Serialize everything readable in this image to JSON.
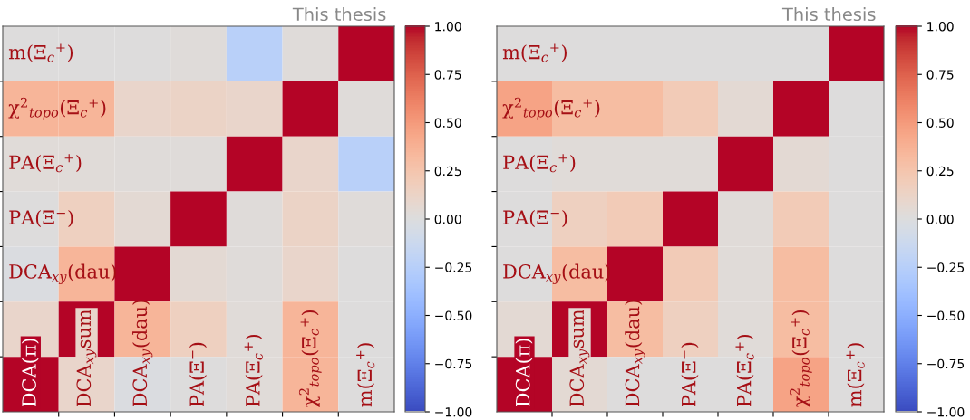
{
  "chart_data": [
    {
      "type": "heatmap",
      "annotations": [
        "This thesis"
      ],
      "tick_labels": false,
      "categories": [
        "DCA(π)",
        "DCA$_{xy}$sum",
        "DCA$_{xy}$(dau)",
        "PA(Ξ$^{−}$)",
        "PA(Ξ$_{c}$$^{+}$)",
        "χ$^{2}$$_{topo}$(Ξ$_{c}$$^{+}$)",
        "m(Ξ$_{c}$$^{+}$)"
      ],
      "y_categories": [
        "m(Ξ$_{c}$$^{+}$)",
        "χ$^{2}$$_{topo}$(Ξ$_{c}$$^{+}$)",
        "PA(Ξ$_{c}$$^{+}$)",
        "PA(Ξ$^{−}$)",
        "DCA$_{xy}$(dau)",
        null,
        null
      ],
      "cells": [
        [
          0.0,
          0.0,
          0.0,
          0.02,
          -0.25,
          0.02,
          1
        ],
        [
          0.35,
          0.35,
          0.1,
          0.12,
          0.1,
          1,
          0.02
        ],
        [
          0.03,
          0.03,
          0.02,
          0.02,
          1,
          0.1,
          -0.25
        ],
        [
          0.0,
          0.15,
          0.05,
          1,
          0.02,
          0.12,
          0.02
        ],
        [
          -0.02,
          0.35,
          1,
          0.05,
          0.02,
          0.1,
          0.0
        ],
        [
          0.1,
          1,
          0.35,
          0.15,
          0.03,
          0.35,
          0.0
        ],
        [
          1,
          0.1,
          -0.02,
          0.0,
          0.03,
          0.35,
          0.0
        ]
      ],
      "clim": [
        -1,
        1
      ],
      "cticks": [
        {
          "value": -1,
          "label": "−1.00"
        },
        {
          "value": -0.75,
          "label": "−0.75"
        },
        {
          "value": -0.5,
          "label": "−0.50"
        },
        {
          "value": -0.25,
          "label": "−0.25"
        },
        {
          "value": 0,
          "label": "0.00"
        },
        {
          "value": 0.25,
          "label": "0.25"
        },
        {
          "value": 0.5,
          "label": "0.50"
        },
        {
          "value": 0.75,
          "label": "0.75"
        },
        {
          "value": 1,
          "label": "1.00"
        }
      ]
    },
    {
      "type": "heatmap",
      "annotations": [
        "This thesis"
      ],
      "tick_labels": false,
      "categories": [
        "DCA(π)",
        "DCA$_{xy}$sum",
        "DCA$_{xy}$(dau)",
        "PA(Ξ$^{−}$)",
        "PA(Ξ$_{c}$$^{+}$)",
        "χ$^{2}$$_{topo}$(Ξ$_{c}$$^{+}$)",
        "m(Ξ$_{c}$$^{+}$)"
      ],
      "y_categories": [
        "m(Ξ$_{c}$$^{+}$)",
        "χ$^{2}$$_{topo}$(Ξ$_{c}$$^{+}$)",
        "PA(Ξ$_{c}$$^{+}$)",
        "PA(Ξ$^{−}$)",
        "DCA$_{xy}$(dau)",
        null,
        null
      ],
      "cells": [
        [
          0.0,
          0.0,
          0.0,
          0.0,
          0.0,
          0.0,
          1
        ],
        [
          0.45,
          0.3,
          0.3,
          0.2,
          0.05,
          1,
          0.0
        ],
        [
          0.0,
          0.03,
          0.03,
          0.03,
          1,
          0.05,
          0.0
        ],
        [
          0.0,
          0.15,
          0.2,
          1,
          0.03,
          0.2,
          0.0
        ],
        [
          0.0,
          0.3,
          1,
          0.2,
          0.03,
          0.3,
          0.0
        ],
        [
          0.05,
          1,
          0.3,
          0.15,
          0.03,
          0.3,
          0.0
        ],
        [
          1,
          0.05,
          0.0,
          0.0,
          0.0,
          0.45,
          0.0
        ]
      ],
      "clim": [
        -1,
        1
      ],
      "cticks": [
        {
          "value": -1,
          "label": "−1.00"
        },
        {
          "value": -0.75,
          "label": "−0.75"
        },
        {
          "value": -0.5,
          "label": "−0.50"
        },
        {
          "value": -0.25,
          "label": "−0.25"
        },
        {
          "value": 0,
          "label": "0.00"
        },
        {
          "value": 0.25,
          "label": "0.25"
        },
        {
          "value": 0.5,
          "label": "0.50"
        },
        {
          "value": 0.75,
          "label": "0.75"
        },
        {
          "value": 1,
          "label": "1.00"
        }
      ]
    }
  ]
}
